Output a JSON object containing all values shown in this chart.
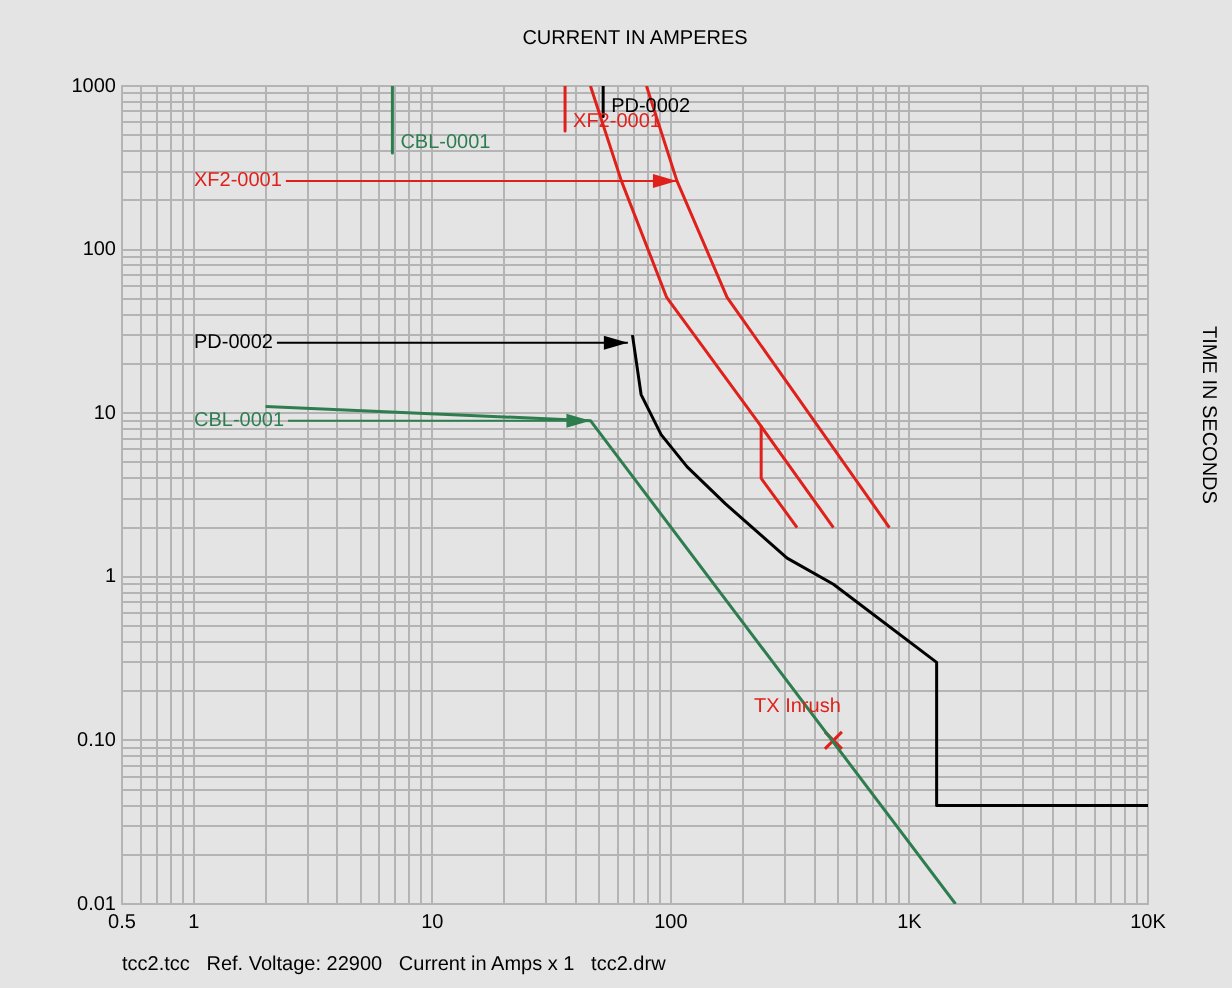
{
  "chart_data": {
    "type": "line",
    "xlabel": "CURRENT IN AMPERES",
    "ylabel": "TIME IN SECONDS",
    "log": "xy",
    "grid": true,
    "legend": false,
    "marker": "none",
    "xlim": [
      0.5,
      10000
    ],
    "ylim": [
      0.01,
      1000
    ],
    "xticks": [
      0.5,
      {
        "value": 0.6,
        "label": null
      },
      {
        "value": 0.7,
        "label": null
      },
      {
        "value": 0.8,
        "label": null
      },
      {
        "value": 0.9,
        "label": null
      },
      1,
      {
        "value": 2,
        "label": null
      },
      {
        "value": 3,
        "label": null
      },
      {
        "value": 4,
        "label": null
      },
      {
        "value": 5,
        "label": null
      },
      {
        "value": 6,
        "label": null
      },
      {
        "value": 7,
        "label": null
      },
      {
        "value": 8,
        "label": null
      },
      {
        "value": 9,
        "label": null
      },
      10,
      {
        "value": 20,
        "label": null
      },
      {
        "value": 30,
        "label": null
      },
      {
        "value": 40,
        "label": null
      },
      {
        "value": 50,
        "label": null
      },
      {
        "value": 60,
        "label": null
      },
      {
        "value": 70,
        "label": null
      },
      {
        "value": 80,
        "label": null
      },
      {
        "value": 90,
        "label": null
      },
      100,
      {
        "value": 200,
        "label": null
      },
      {
        "value": 300,
        "label": null
      },
      {
        "value": 400,
        "label": null
      },
      {
        "value": 500,
        "label": null
      },
      {
        "value": 600,
        "label": null
      },
      {
        "value": 700,
        "label": null
      },
      {
        "value": 800,
        "label": null
      },
      {
        "value": 900,
        "label": null
      },
      {
        "value": 1000,
        "label": "1K"
      },
      {
        "value": 2000,
        "label": null
      },
      {
        "value": 3000,
        "label": null
      },
      {
        "value": 4000,
        "label": null
      },
      {
        "value": 5000,
        "label": null
      },
      {
        "value": 6000,
        "label": null
      },
      {
        "value": 7000,
        "label": null
      },
      {
        "value": 8000,
        "label": null
      },
      {
        "value": 9000,
        "label": null
      },
      {
        "value": 10000,
        "label": "10K"
      }
    ],
    "yticks": [
      0.01,
      {
        "value": 0.02,
        "label": null
      },
      {
        "value": 0.03,
        "label": null
      },
      {
        "value": 0.04,
        "label": null
      },
      {
        "value": 0.05,
        "label": null
      },
      {
        "value": 0.06,
        "label": null
      },
      {
        "value": 0.07,
        "label": null
      },
      {
        "value": 0.08,
        "label": null
      },
      {
        "value": 0.09,
        "label": null
      },
      {
        "value": 0.1,
        "label": "0.10"
      },
      {
        "value": 0.2,
        "label": null
      },
      {
        "value": 0.3,
        "label": null
      },
      {
        "value": 0.4,
        "label": null
      },
      {
        "value": 0.5,
        "label": null
      },
      {
        "value": 0.6,
        "label": null
      },
      {
        "value": 0.7,
        "label": null
      },
      {
        "value": 0.8,
        "label": null
      },
      {
        "value": 0.9,
        "label": null
      },
      1,
      {
        "value": 2,
        "label": null
      },
      {
        "value": 3,
        "label": null
      },
      {
        "value": 4,
        "label": null
      },
      {
        "value": 5,
        "label": null
      },
      {
        "value": 6,
        "label": null
      },
      {
        "value": 7,
        "label": null
      },
      {
        "value": 8,
        "label": null
      },
      {
        "value": 9,
        "label": null
      },
      10,
      {
        "value": 20,
        "label": null
      },
      {
        "value": 30,
        "label": null
      },
      {
        "value": 40,
        "label": null
      },
      {
        "value": 50,
        "label": null
      },
      {
        "value": 60,
        "label": null
      },
      {
        "value": 70,
        "label": null
      },
      {
        "value": 80,
        "label": null
      },
      {
        "value": 90,
        "label": null
      },
      100,
      {
        "value": 200,
        "label": null
      },
      {
        "value": 300,
        "label": null
      },
      {
        "value": 400,
        "label": null
      },
      {
        "value": 500,
        "label": null
      },
      {
        "value": 600,
        "label": null
      },
      {
        "value": 700,
        "label": null
      },
      {
        "value": 800,
        "label": null
      },
      {
        "value": 900,
        "label": null
      },
      1000
    ],
    "series": [
      {
        "color": "#e0201b",
        "x": [
          79,
          106,
          172,
          824
        ],
        "values": [
          1000,
          263,
          51,
          2
        ]
      },
      {
        "color": "#e0201b",
        "x": [
          46,
          62,
          96,
          239,
          480
        ],
        "values": [
          1000,
          263,
          51,
          8.3,
          2
        ]
      },
      {
        "color": "#e0201b",
        "x": [
          239,
          239,
          338
        ],
        "values": [
          8.3,
          4,
          2
        ]
      },
      {
        "color": "#000000",
        "x": [
          69,
          75,
          91,
          117,
          169,
          307,
          480,
          1300,
          1300,
          10000
        ],
        "values": [
          30,
          13,
          7.4,
          4.7,
          2.8,
          1.3,
          0.9,
          0.3,
          0.04,
          0.04
        ]
      },
      {
        "color": "#2e7d4f",
        "x": [
          2,
          46,
          1560
        ],
        "values": [
          11,
          9,
          0.01
        ]
      },
      {
        "name": "CBL-0001",
        "color": "#2e7d4f",
        "x": [
          6.8,
          6.8
        ],
        "values": [
          1000,
          390
        ]
      },
      {
        "name": "XF2-0001",
        "color": "#e0201b",
        "x": [
          36,
          36
        ],
        "values": [
          1000,
          530
        ]
      },
      {
        "name": "PD-0002",
        "color": "#000000",
        "x": [
          52,
          52
        ],
        "values": [
          1000,
          650
        ]
      },
      {
        "name": "TX Inrush",
        "type": "scatter",
        "marker": "cross",
        "color": "#e0201b",
        "x": [
          480
        ],
        "values": [
          0.1
        ]
      }
    ],
    "annotations": [
      {
        "text": "XF2-0001",
        "x": 106,
        "y": 263
      },
      {
        "text": "PD-0002",
        "x": 66,
        "y": 27
      },
      {
        "text": "CBL-0001",
        "x": 46,
        "y": 9
      },
      "tcc2.tcc   Ref. Voltage: 22900   Current in Amps x 1   tcc2.drw"
    ]
  }
}
